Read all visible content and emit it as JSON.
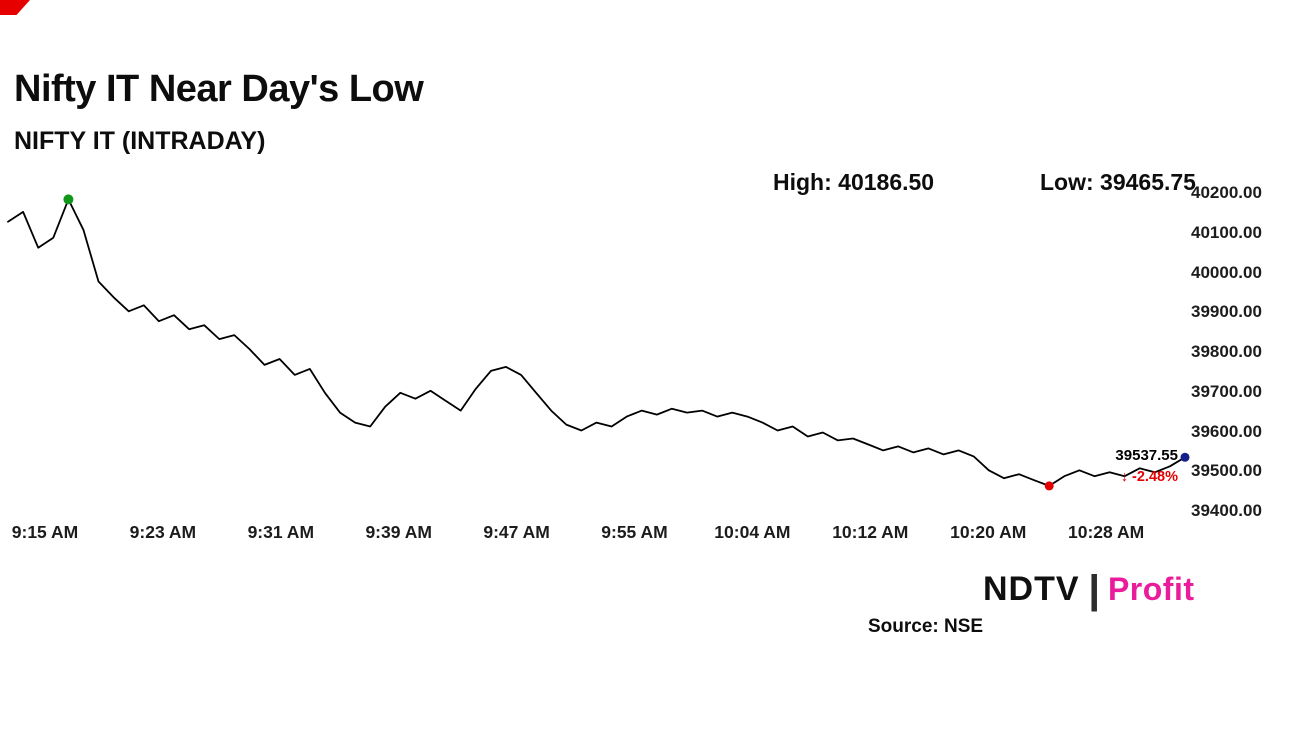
{
  "header": {
    "title": "Nifty IT Near Day's Low",
    "subtitle": "NIFTY IT (INTRADAY)"
  },
  "stats": {
    "high": "High: 40186.50",
    "low": "Low: 39465.75"
  },
  "chart_data": {
    "type": "line",
    "title": "NIFTY IT (INTRADAY)",
    "x_start": "9:15 AM",
    "x_interval_minutes": 1,
    "values": [
      40130,
      40155,
      40065,
      40090,
      40186.5,
      40110,
      39980,
      39940,
      39905,
      39920,
      39880,
      39895,
      39860,
      39870,
      39835,
      39845,
      39810,
      39770,
      39785,
      39745,
      39760,
      39700,
      39650,
      39625,
      39615,
      39665,
      39700,
      39685,
      39705,
      39680,
      39655,
      39710,
      39755,
      39765,
      39745,
      39700,
      39655,
      39620,
      39605,
      39625,
      39615,
      39640,
      39655,
      39645,
      39660,
      39650,
      39655,
      39640,
      39650,
      39640,
      39625,
      39605,
      39615,
      39590,
      39600,
      39580,
      39585,
      39570,
      39555,
      39565,
      39550,
      39560,
      39545,
      39555,
      39540,
      39505,
      39485,
      39495,
      39480,
      39465.75,
      39490,
      39505,
      39490,
      39500,
      39490,
      39510,
      39500,
      39515,
      39537.55
    ],
    "x_tick_labels": [
      "9:15 AM",
      "9:23 AM",
      "9:31 AM",
      "9:39 AM",
      "9:47 AM",
      "9:55 AM",
      "10:04 AM",
      "10:12 AM",
      "10:20 AM",
      "10:28 AM"
    ],
    "y_ticks": [
      40200,
      40100,
      40000,
      39900,
      39800,
      39700,
      39600,
      39500,
      39400
    ],
    "y_tick_labels": [
      "40200.00",
      "40100.00",
      "40000.00",
      "39900.00",
      "39800.00",
      "39700.00",
      "39600.00",
      "39500.00",
      "39400.00"
    ],
    "ylim": [
      39400,
      40200
    ],
    "grid": "off",
    "legend": "none",
    "high": 40186.5,
    "low": 39465.75,
    "last": 39537.55,
    "change_percent": -2.48,
    "last_label": "39537.55",
    "change_label": "↓ -2.48%",
    "markers": {
      "high_index": 4,
      "low_index": 69,
      "last_index": 78
    },
    "colors": {
      "line": "#000000",
      "high_dot": "#109618",
      "low_dot": "#e60000",
      "last_dot": "#17218c",
      "change_text": "#e60000"
    }
  },
  "footer": {
    "logo_ndtv": "NDTV",
    "logo_separator": "|",
    "logo_profit": "Profit",
    "source": "Source: NSE"
  }
}
